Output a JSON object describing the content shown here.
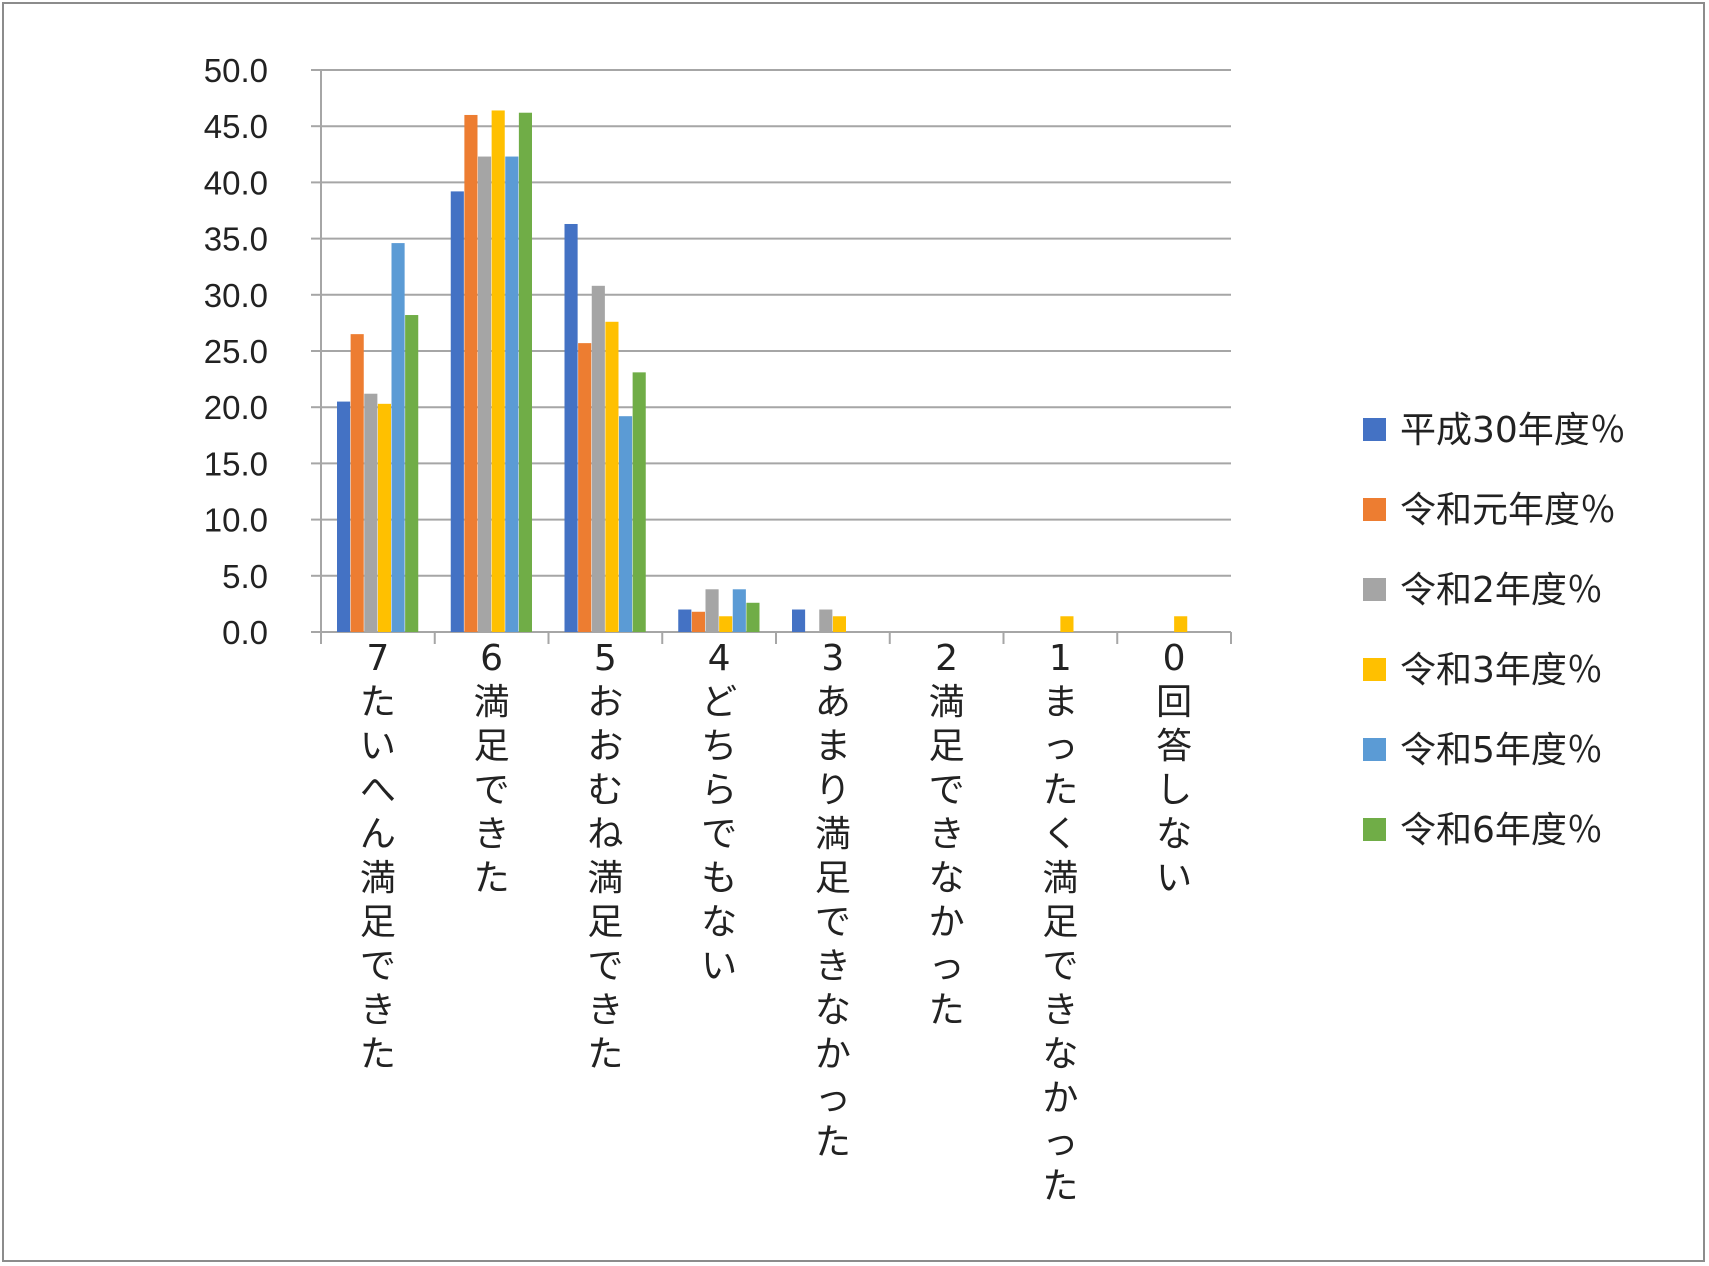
{
  "chart_data": {
    "type": "bar",
    "title": "",
    "xlabel": "",
    "ylabel": "",
    "ylim": [
      0,
      50
    ],
    "yticks": [
      "0.0",
      "5.0",
      "10.0",
      "15.0",
      "20.0",
      "25.0",
      "30.0",
      "35.0",
      "40.0",
      "45.0",
      "50.0"
    ],
    "grid": true,
    "legend_position": "right",
    "categories": [
      "7たいへん満足できた",
      "6満足できた",
      "5おおむね満足できた",
      "4どちらでもない",
      "3あまり満足できなかった",
      "2満足できなかった",
      "1まったく満足できなかった",
      "0回答しない"
    ],
    "series": [
      {
        "name": "平成30年度％",
        "color": "#4472C4",
        "values": [
          20.5,
          39.2,
          36.3,
          2.0,
          2.0,
          0,
          0,
          0
        ]
      },
      {
        "name": "令和元年度％",
        "color": "#ED7D31",
        "values": [
          26.5,
          46.0,
          25.7,
          1.8,
          0,
          0,
          0,
          0
        ]
      },
      {
        "name": "令和2年度％",
        "color": "#A5A5A5",
        "values": [
          21.2,
          42.3,
          30.8,
          3.8,
          2.0,
          0,
          0,
          0
        ]
      },
      {
        "name": "令和3年度％",
        "color": "#FFC000",
        "values": [
          20.3,
          46.4,
          27.6,
          1.4,
          1.4,
          0,
          1.4,
          1.4
        ]
      },
      {
        "name": "令和5年度％",
        "color": "#5B9BD5",
        "values": [
          34.6,
          42.3,
          19.2,
          3.8,
          0,
          0,
          0,
          0
        ]
      },
      {
        "name": "令和6年度％",
        "color": "#70AD47",
        "values": [
          28.2,
          46.2,
          23.1,
          2.6,
          0,
          0,
          0,
          0
        ]
      }
    ]
  }
}
